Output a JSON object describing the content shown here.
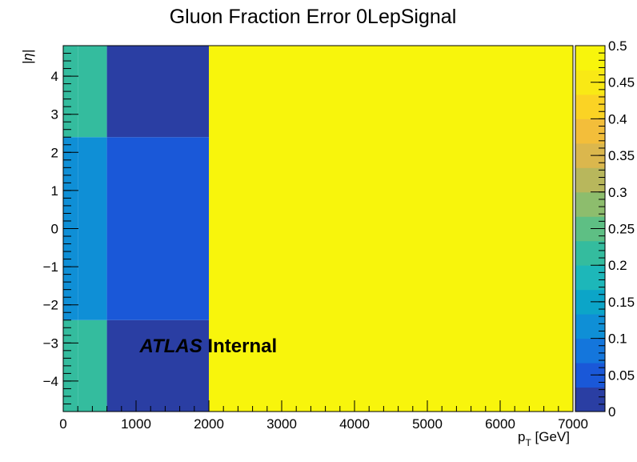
{
  "chart_data": {
    "type": "heatmap",
    "title": "Gluon Fraction Error 0LepSignal",
    "xlabel_main": "p",
    "xlabel_sub": "T",
    "xlabel_unit": " [GeV]",
    "ylabel": "|η|",
    "xlim": [
      0,
      7000
    ],
    "ylim": [
      -4.8,
      4.8
    ],
    "zlim": [
      0,
      0.5
    ],
    "x_ticks": [
      0,
      1000,
      2000,
      3000,
      4000,
      5000,
      6000,
      7000
    ],
    "x_tick_labels": [
      "0",
      "1000",
      "2000",
      "3000",
      "4000",
      "5000",
      "6000",
      "7000"
    ],
    "y_ticks": [
      -4,
      -3,
      -2,
      -1,
      0,
      1,
      2,
      3,
      4
    ],
    "y_tick_labels": [
      "−4",
      "−3",
      "−2",
      "−1",
      "0",
      "1",
      "2",
      "3",
      "4"
    ],
    "z_ticks": [
      0,
      0.05,
      0.1,
      0.15,
      0.2,
      0.25,
      0.3,
      0.35,
      0.4,
      0.45,
      0.5
    ],
    "z_tick_labels": [
      "0",
      "0.05",
      "0.1",
      "0.15",
      "0.2",
      "0.25",
      "0.3",
      "0.35",
      "0.4",
      "0.45",
      "0.5"
    ],
    "palette_colors": [
      "#2a3ea3",
      "#1a58d8",
      "#1476dc",
      "#0f8fd6",
      "#0ca5c8",
      "#1db7b9",
      "#34bc9e",
      "#5ebf84",
      "#8dbd6d",
      "#b8b75c",
      "#dbb74d",
      "#f3be3a",
      "#fbd324",
      "#f9e915",
      "#f8f50c"
    ],
    "cells": [
      {
        "x0": 0,
        "x1": 200,
        "y0": -4.8,
        "y1": -2.4,
        "z": 0.21
      },
      {
        "x0": 0,
        "x1": 200,
        "y0": -2.4,
        "y1": 2.4,
        "z": 0.13
      },
      {
        "x0": 0,
        "x1": 200,
        "y0": 2.4,
        "y1": 4.8,
        "z": 0.21
      },
      {
        "x0": 200,
        "x1": 600,
        "y0": -4.8,
        "y1": -2.4,
        "z": 0.2
      },
      {
        "x0": 200,
        "x1": 600,
        "y0": -2.4,
        "y1": 2.4,
        "z": 0.12
      },
      {
        "x0": 200,
        "x1": 600,
        "y0": 2.4,
        "y1": 4.8,
        "z": 0.2
      },
      {
        "x0": 600,
        "x1": 2000,
        "y0": -4.8,
        "y1": -2.4,
        "z": 0.01
      },
      {
        "x0": 600,
        "x1": 2000,
        "y0": -2.4,
        "y1": 2.4,
        "z": 0.05
      },
      {
        "x0": 600,
        "x1": 2000,
        "y0": 2.4,
        "y1": 4.8,
        "z": 0.01
      },
      {
        "x0": 2000,
        "x1": 7000,
        "y0": -4.8,
        "y1": 4.8,
        "z": 0.5
      }
    ],
    "annotation": {
      "bold_italic": "ATLAS",
      "bold": " Internal",
      "x": 1050,
      "y": -3.25
    }
  }
}
